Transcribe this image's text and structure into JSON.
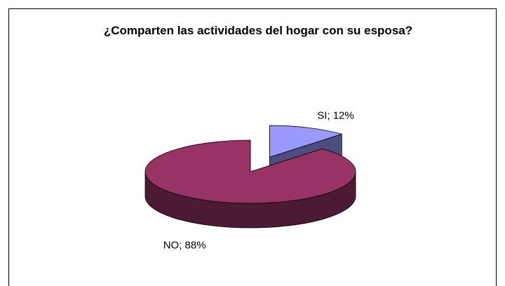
{
  "chart_data": {
    "type": "pie",
    "title": "¿Comparten las actividades del hogar con su esposa?",
    "values": [
      12,
      88
    ],
    "value_labels": [
      "SI; 12%",
      "NO; 88%"
    ],
    "colors": [
      "#9999ff",
      "#993366"
    ]
  }
}
